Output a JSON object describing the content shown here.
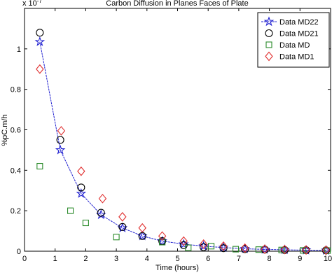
{
  "chart_data": {
    "type": "scatter",
    "title": "Carbon Diffusion in Planes Faces of Plate",
    "xlabel": "Time (hours)",
    "ylabel": "%pC.m/h",
    "y_exponent": {
      "base": "x 10",
      "power": "-7"
    },
    "xlim": [
      0,
      10
    ],
    "xticks": [
      0,
      1,
      2,
      3,
      4,
      5,
      6,
      7,
      8,
      9,
      10
    ],
    "ylim": [
      0,
      1.2
    ],
    "yticks": [
      0,
      0.2,
      0.4,
      0.6,
      0.8,
      1
    ],
    "legend": "northeast",
    "series": [
      {
        "name": "Data MD22",
        "color": "#1f1fd0",
        "marker": "star",
        "line": true,
        "x": [
          0.5,
          1.17,
          1.85,
          2.5,
          3.2,
          3.85,
          4.5,
          5.2,
          5.85,
          6.5,
          7.2,
          7.85,
          8.5,
          9.2,
          9.85
        ],
        "values": [
          1.035,
          0.5,
          0.285,
          0.18,
          0.115,
          0.075,
          0.05,
          0.035,
          0.025,
          0.018,
          0.012,
          0.009,
          0.007,
          0.005,
          0.004
        ]
      },
      {
        "name": "Data MD21",
        "color": "#000000",
        "marker": "circle",
        "x": [
          0.5,
          1.17,
          1.85,
          2.5,
          3.2,
          3.85,
          4.5,
          5.2,
          5.85,
          6.5,
          7.2,
          7.85,
          8.5,
          9.2,
          9.85
        ],
        "values": [
          1.08,
          0.55,
          0.315,
          0.19,
          0.12,
          0.075,
          0.05,
          0.03,
          0.02,
          0.015,
          0.01,
          0.008,
          0.006,
          0.005,
          0.004
        ]
      },
      {
        "name": "Data MD",
        "color": "#2a8a2a",
        "marker": "square",
        "x": [
          0.5,
          1.5,
          2.0,
          3.0,
          4.5,
          5.35,
          6.1,
          6.9,
          7.65,
          8.4,
          9.1,
          9.9
        ],
        "values": [
          0.42,
          0.2,
          0.14,
          0.07,
          0.045,
          0.017,
          0.025,
          0.01,
          0.008,
          0.006,
          0.004,
          0.003
        ]
      },
      {
        "name": "Data MD1",
        "color": "#e03030",
        "marker": "diamond",
        "x": [
          0.5,
          1.2,
          1.85,
          2.55,
          3.2,
          3.85,
          4.5,
          5.2,
          5.85,
          6.5,
          7.2,
          7.85,
          8.5,
          9.2,
          9.85
        ],
        "values": [
          0.9,
          0.595,
          0.395,
          0.26,
          0.17,
          0.115,
          0.075,
          0.05,
          0.035,
          0.025,
          0.015,
          0.01,
          0.008,
          0.006,
          0.005
        ]
      }
    ]
  }
}
